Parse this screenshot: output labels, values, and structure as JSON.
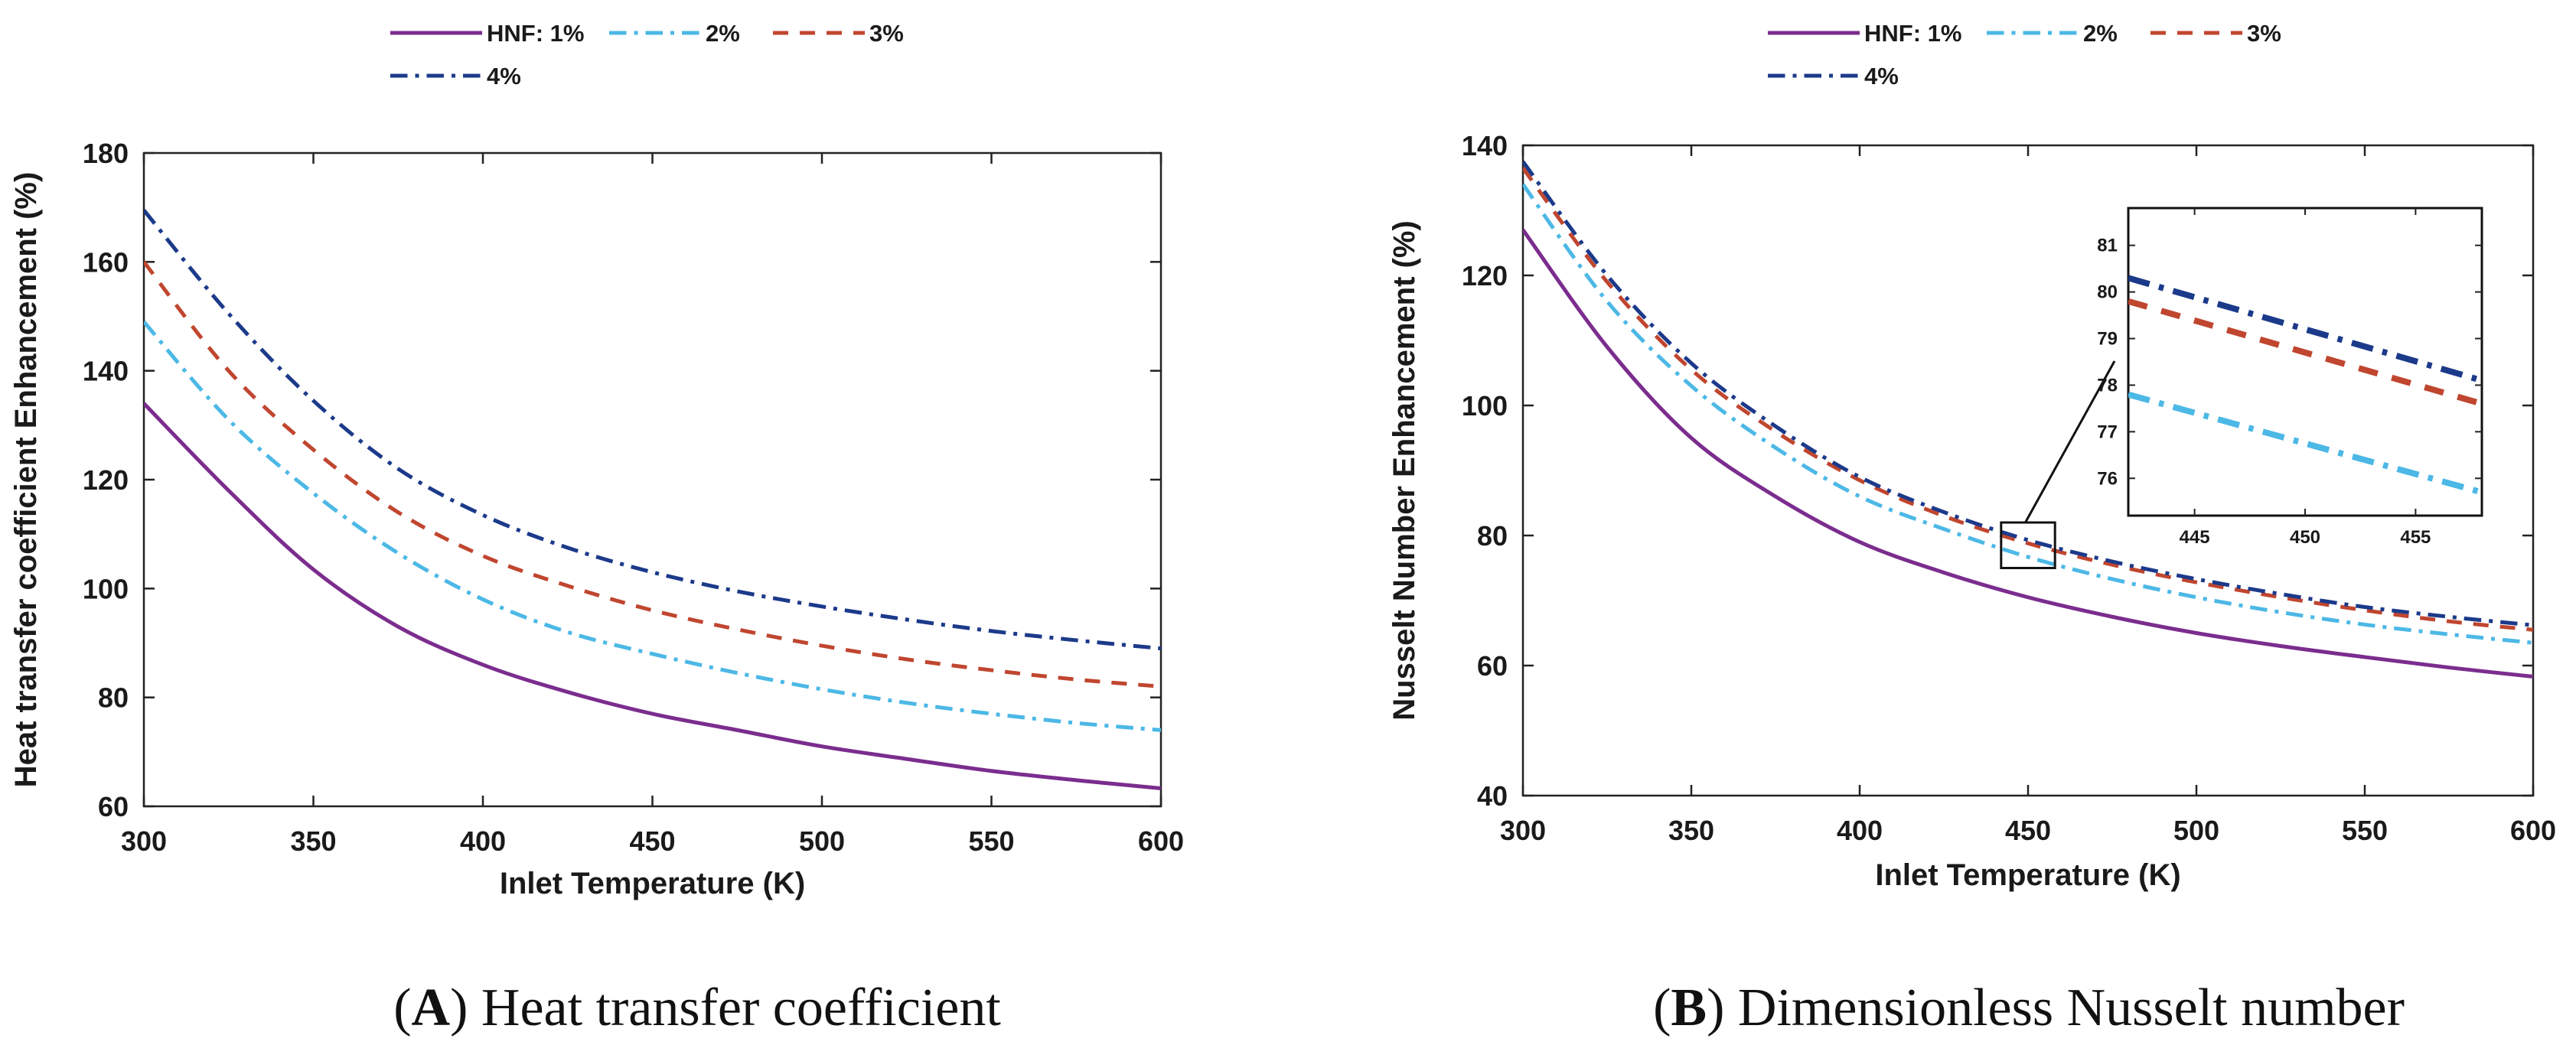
{
  "chart_data": [
    {
      "type": "line",
      "panel": "A",
      "caption_letter": "A",
      "caption_text": "Heat transfer coefficient",
      "xlabel": "Inlet Temperature (K)",
      "ylabel": "Heat transfer coefficient Enhancement (%)",
      "xlim": [
        300,
        600
      ],
      "ylim": [
        60,
        180
      ],
      "xticks": [
        300,
        350,
        400,
        450,
        500,
        550,
        600
      ],
      "yticks": [
        60,
        80,
        100,
        120,
        140,
        160,
        180
      ],
      "legend": {
        "position": "top",
        "entries": [
          "HNF: 1%",
          "2%",
          "3%",
          "4%"
        ]
      },
      "x": [
        300,
        325,
        350,
        375,
        400,
        425,
        450,
        475,
        500,
        525,
        550,
        575,
        600
      ],
      "series": [
        {
          "name": "HNF: 1%",
          "color": "#7b2d8e",
          "dash": "solid",
          "values": [
            134,
            118,
            103.5,
            93,
            86,
            81,
            77,
            74,
            71,
            68.7,
            66.5,
            64.8,
            63.3
          ]
        },
        {
          "name": "2%",
          "color": "#4cb8e6",
          "dash": "dashdot",
          "values": [
            149,
            131,
            117.5,
            106.5,
            98,
            92,
            88,
            84.5,
            81.5,
            79,
            77,
            75.3,
            74
          ]
        },
        {
          "name": "3%",
          "color": "#c0462f",
          "dash": "dash",
          "values": [
            160,
            140,
            125.5,
            114,
            106,
            100.5,
            96,
            92.5,
            89.5,
            87,
            85,
            83.3,
            82
          ]
        },
        {
          "name": "4%",
          "color": "#1c3a8a",
          "dash": "dashdot",
          "values": [
            169.5,
            150.5,
            134.5,
            122,
            113.5,
            107.5,
            103,
            99.5,
            96.7,
            94.3,
            92.2,
            90.5,
            89
          ]
        }
      ]
    },
    {
      "type": "line",
      "panel": "B",
      "caption_letter": "B",
      "caption_text": "Dimensionless Nusselt number",
      "xlabel": "Inlet Temperature (K)",
      "ylabel": "Nusselt Number Enhancement (%)",
      "xlim": [
        300,
        600
      ],
      "ylim": [
        40,
        140
      ],
      "xticks": [
        300,
        350,
        400,
        450,
        500,
        550,
        600
      ],
      "yticks": [
        40,
        60,
        80,
        100,
        120,
        140
      ],
      "legend": {
        "position": "top",
        "entries": [
          "HNF: 1%",
          "2%",
          "3%",
          "4%"
        ]
      },
      "x": [
        300,
        325,
        350,
        375,
        400,
        425,
        450,
        475,
        500,
        525,
        550,
        575,
        600
      ],
      "series": [
        {
          "name": "HNF: 1%",
          "color": "#7b2d8e",
          "dash": "solid",
          "values": [
            127,
            109,
            95,
            86,
            79,
            74.3,
            70.5,
            67.5,
            65,
            63,
            61.3,
            59.7,
            58.3
          ]
        },
        {
          "name": "2%",
          "color": "#4cb8e6",
          "dash": "dashdot",
          "values": [
            134,
            116,
            103,
            93.5,
            86,
            81,
            76.7,
            73.3,
            70.5,
            68.2,
            66.3,
            64.8,
            63.5
          ]
        },
        {
          "name": "3%",
          "color": "#c0462f",
          "dash": "dash",
          "values": [
            136.5,
            119,
            105.5,
            96,
            88.5,
            83,
            78.8,
            75.5,
            72.8,
            70.5,
            68.5,
            66.8,
            65.5
          ]
        },
        {
          "name": "4%",
          "color": "#1c3a8a",
          "dash": "dashdot",
          "values": [
            137.5,
            120,
            106.5,
            96.8,
            89,
            83.6,
            79.3,
            76,
            73.3,
            71,
            69,
            67.5,
            66.2
          ]
        }
      ],
      "inset": {
        "xlim": [
          442,
          458
        ],
        "ylim": [
          75.2,
          81.8
        ],
        "xticks": [
          445,
          450,
          455
        ],
        "yticks": [
          76,
          77,
          78,
          79,
          80,
          81
        ],
        "x": [
          442,
          458
        ],
        "series": [
          {
            "name": "2%",
            "values": [
              77.8,
              75.7
            ]
          },
          {
            "name": "3%",
            "values": [
              79.8,
              77.6
            ]
          },
          {
            "name": "4%",
            "values": [
              80.3,
              78.1
            ]
          }
        ],
        "zoom_box": {
          "x": [
            442,
            458
          ],
          "y": [
            75,
            82
          ]
        }
      }
    }
  ]
}
